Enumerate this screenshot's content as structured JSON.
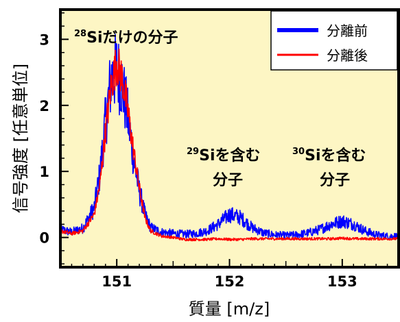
{
  "chart_data": {
    "type": "line",
    "xlabel": "質量 [m/z]",
    "ylabel": "信号強度 [任意単位]",
    "xlim": [
      150.5,
      153.5
    ],
    "ylim": [
      -0.45,
      3.45
    ],
    "x_ticks": [
      151,
      152,
      153
    ],
    "y_ticks": [
      0,
      1,
      2,
      3
    ],
    "x_tick_labels": [
      "151",
      "152",
      "153"
    ],
    "y_tick_labels": [
      "0",
      "1",
      "2",
      "3"
    ],
    "grid": false,
    "background": "#fdf6c4",
    "legend_position": "top-right",
    "series": [
      {
        "name": "分離前",
        "color": "#0000ff",
        "x": [
          150.5,
          150.6,
          150.7,
          150.8,
          150.85,
          150.9,
          150.95,
          151.0,
          151.05,
          151.1,
          151.15,
          151.2,
          151.25,
          151.3,
          151.4,
          151.5,
          151.6,
          151.7,
          151.8,
          151.9,
          152.0,
          152.1,
          152.2,
          152.3,
          152.4,
          152.5,
          152.6,
          152.7,
          152.8,
          152.9,
          153.0,
          153.1,
          153.2,
          153.3,
          153.4,
          153.5
        ],
        "y": [
          0.12,
          0.08,
          0.14,
          0.45,
          0.95,
          1.75,
          2.4,
          2.55,
          2.3,
          1.8,
          1.2,
          0.7,
          0.35,
          0.15,
          0.08,
          0.06,
          0.05,
          0.06,
          0.1,
          0.2,
          0.35,
          0.3,
          0.15,
          0.07,
          0.04,
          0.03,
          0.04,
          0.07,
          0.12,
          0.2,
          0.25,
          0.2,
          0.1,
          0.04,
          0.02,
          0.02
        ]
      },
      {
        "name": "分離後",
        "color": "#ff0000",
        "x": [
          150.5,
          150.6,
          150.7,
          150.8,
          150.85,
          150.9,
          150.95,
          151.0,
          151.05,
          151.1,
          151.15,
          151.2,
          151.25,
          151.3,
          151.4,
          151.5,
          151.6,
          151.7,
          151.8,
          151.9,
          152.0,
          152.1,
          152.2,
          152.3,
          152.4,
          152.5,
          152.6,
          152.7,
          152.8,
          152.9,
          153.0,
          153.1,
          153.2,
          153.3,
          153.4,
          153.5
        ],
        "y": [
          0.1,
          0.06,
          0.1,
          0.35,
          0.8,
          1.6,
          2.3,
          2.65,
          2.4,
          1.9,
          1.3,
          0.75,
          0.3,
          0.1,
          0.02,
          0.0,
          -0.03,
          -0.03,
          -0.03,
          -0.02,
          -0.03,
          -0.03,
          -0.02,
          -0.02,
          -0.02,
          -0.02,
          -0.02,
          -0.02,
          -0.02,
          -0.02,
          -0.01,
          -0.02,
          -0.02,
          -0.02,
          -0.02,
          -0.02
        ]
      }
    ],
    "annotations": [
      {
        "sup": "28",
        "text": "Siだけの分子"
      },
      {
        "sup": "29",
        "text": "Siを含む",
        "text2": "分子"
      },
      {
        "sup": "30",
        "text": "Siを含む",
        "text2": "分子"
      }
    ]
  }
}
